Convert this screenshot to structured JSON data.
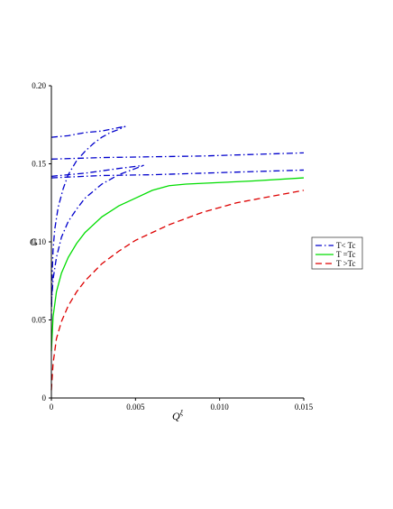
{
  "chart_data": {
    "type": "line",
    "xlabel": "Q",
    "xlabel_superscript": "ξ",
    "ylabel": "G",
    "xlim": [
      0,
      0.015
    ],
    "ylim": [
      0,
      0.2
    ],
    "x_ticks": [
      "0",
      "0.005",
      "0.010",
      "0.015"
    ],
    "y_ticks": [
      "0",
      "0.05",
      "0.10",
      "0.15",
      "0.20"
    ],
    "grid": false,
    "legend_position": "right",
    "legend": [
      {
        "label": "T< Tc",
        "color": "#0000cc",
        "dash": "dashdot"
      },
      {
        "label": "T =Tc",
        "color": "#00dd00",
        "dash": "solid"
      },
      {
        "label": "T >Tc",
        "color": "#dd0000",
        "dash": "dashed"
      }
    ],
    "series": [
      {
        "color": "#0000cc",
        "dash": "dashdot",
        "points": [
          [
            0,
            0.05
          ],
          [
            5e-05,
            0.08
          ],
          [
            0.0001,
            0.095
          ],
          [
            0.0002,
            0.108
          ],
          [
            0.0004,
            0.122
          ],
          [
            0.0007,
            0.134
          ],
          [
            0.001,
            0.143
          ],
          [
            0.0015,
            0.152
          ],
          [
            0.002,
            0.158
          ],
          [
            0.0025,
            0.163
          ],
          [
            0.003,
            0.167
          ],
          [
            0.0035,
            0.17
          ],
          [
            0.004,
            0.172
          ],
          [
            0.0044,
            0.174
          ]
        ]
      },
      {
        "color": "#0000cc",
        "dash": "dashdot",
        "points": [
          [
            0,
            0.167
          ],
          [
            0.001,
            0.168
          ],
          [
            0.002,
            0.17
          ],
          [
            0.003,
            0.171
          ],
          [
            0.0044,
            0.174
          ]
        ]
      },
      {
        "color": "#0000cc",
        "dash": "dashdot",
        "points": [
          [
            0,
            0.153
          ],
          [
            0.003,
            0.154
          ],
          [
            0.006,
            0.1545
          ],
          [
            0.009,
            0.155
          ],
          [
            0.012,
            0.156
          ],
          [
            0.015,
            0.157
          ]
        ]
      },
      {
        "color": "#0000cc",
        "dash": "dashdot",
        "points": [
          [
            0,
            0.06
          ],
          [
            0.0001,
            0.076
          ],
          [
            0.0003,
            0.09
          ],
          [
            0.0006,
            0.103
          ],
          [
            0.001,
            0.113
          ],
          [
            0.0015,
            0.121
          ],
          [
            0.002,
            0.128
          ],
          [
            0.003,
            0.137
          ],
          [
            0.004,
            0.143
          ],
          [
            0.005,
            0.147
          ],
          [
            0.0055,
            0.149
          ]
        ]
      },
      {
        "color": "#0000cc",
        "dash": "dashdot",
        "points": [
          [
            0,
            0.142
          ],
          [
            0.002,
            0.144
          ],
          [
            0.004,
            0.147
          ],
          [
            0.0055,
            0.149
          ]
        ]
      },
      {
        "color": "#0000cc",
        "dash": "dashdot",
        "points": [
          [
            0,
            0.141
          ],
          [
            0.003,
            0.1425
          ],
          [
            0.006,
            0.143
          ],
          [
            0.009,
            0.144
          ],
          [
            0.012,
            0.145
          ],
          [
            0.015,
            0.146
          ]
        ]
      },
      {
        "color": "#00dd00",
        "dash": "solid",
        "points": [
          [
            0,
            0.03
          ],
          [
            0.0001,
            0.052
          ],
          [
            0.0003,
            0.068
          ],
          [
            0.0006,
            0.08
          ],
          [
            0.001,
            0.09
          ],
          [
            0.0015,
            0.099
          ],
          [
            0.002,
            0.106
          ],
          [
            0.003,
            0.116
          ],
          [
            0.004,
            0.123
          ],
          [
            0.005,
            0.128
          ],
          [
            0.006,
            0.133
          ],
          [
            0.007,
            0.136
          ],
          [
            0.008,
            0.137
          ],
          [
            0.01,
            0.138
          ],
          [
            0.012,
            0.139
          ],
          [
            0.015,
            0.141
          ]
        ]
      },
      {
        "color": "#dd0000",
        "dash": "dashed",
        "points": [
          [
            0,
            0.005
          ],
          [
            0.0001,
            0.022
          ],
          [
            0.0003,
            0.038
          ],
          [
            0.0006,
            0.049
          ],
          [
            0.001,
            0.059
          ],
          [
            0.0015,
            0.068
          ],
          [
            0.002,
            0.075
          ],
          [
            0.003,
            0.086
          ],
          [
            0.004,
            0.094
          ],
          [
            0.005,
            0.101
          ],
          [
            0.006,
            0.106
          ],
          [
            0.007,
            0.111
          ],
          [
            0.008,
            0.115
          ],
          [
            0.009,
            0.119
          ],
          [
            0.01,
            0.122
          ],
          [
            0.011,
            0.125
          ],
          [
            0.012,
            0.127
          ],
          [
            0.013,
            0.129
          ],
          [
            0.014,
            0.131
          ],
          [
            0.015,
            0.133
          ]
        ]
      }
    ]
  }
}
